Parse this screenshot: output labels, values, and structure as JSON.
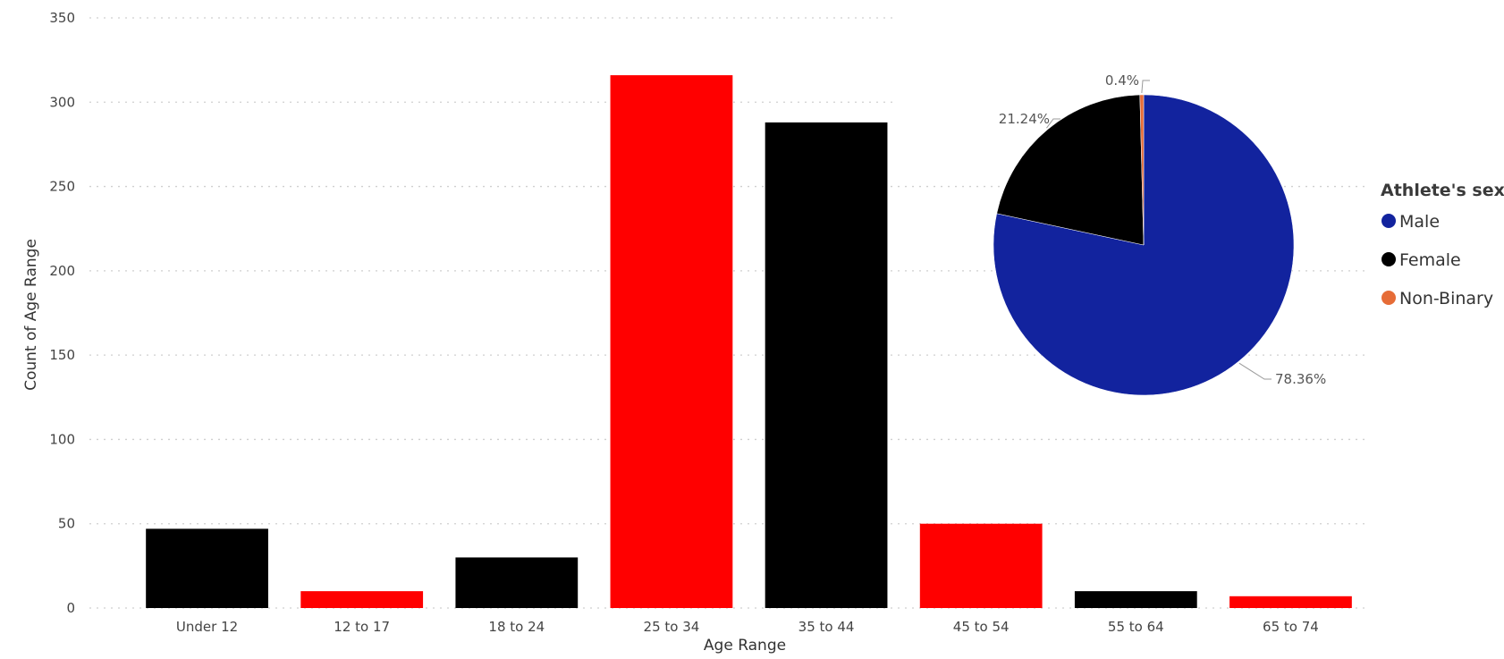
{
  "colors": {
    "red": "#ff0000",
    "black": "#000000",
    "male": "#12239e",
    "female": "#000000",
    "nonbinary": "#e66c37",
    "grid": "#cfcfcf"
  },
  "chart_data": [
    {
      "type": "bar",
      "title": "",
      "xlabel": "Age Range",
      "ylabel": "Count of Age Range",
      "ylim": [
        0,
        350
      ],
      "yticks": [
        0,
        50,
        100,
        150,
        200,
        250,
        300,
        350
      ],
      "grid": true,
      "categories": [
        "Under 12",
        "12 to 17",
        "18 to 24",
        "25 to 34",
        "35 to 44",
        "45 to 54",
        "55 to 64",
        "65 to 74"
      ],
      "values": [
        47,
        10,
        30,
        316,
        288,
        50,
        10,
        7
      ],
      "bar_colors": [
        "#000000",
        "#ff0000",
        "#000000",
        "#ff0000",
        "#000000",
        "#ff0000",
        "#000000",
        "#ff0000"
      ]
    },
    {
      "type": "pie",
      "legend_title": "Athlete's sex",
      "legend_position": "right",
      "slices": [
        {
          "name": "Male",
          "value": 78.36,
          "label": "78.36%",
          "color": "#12239e"
        },
        {
          "name": "Female",
          "value": 21.24,
          "label": "21.24%",
          "color": "#000000"
        },
        {
          "name": "Non-Binary",
          "value": 0.4,
          "label": "0.4%",
          "color": "#e66c37"
        }
      ]
    }
  ]
}
